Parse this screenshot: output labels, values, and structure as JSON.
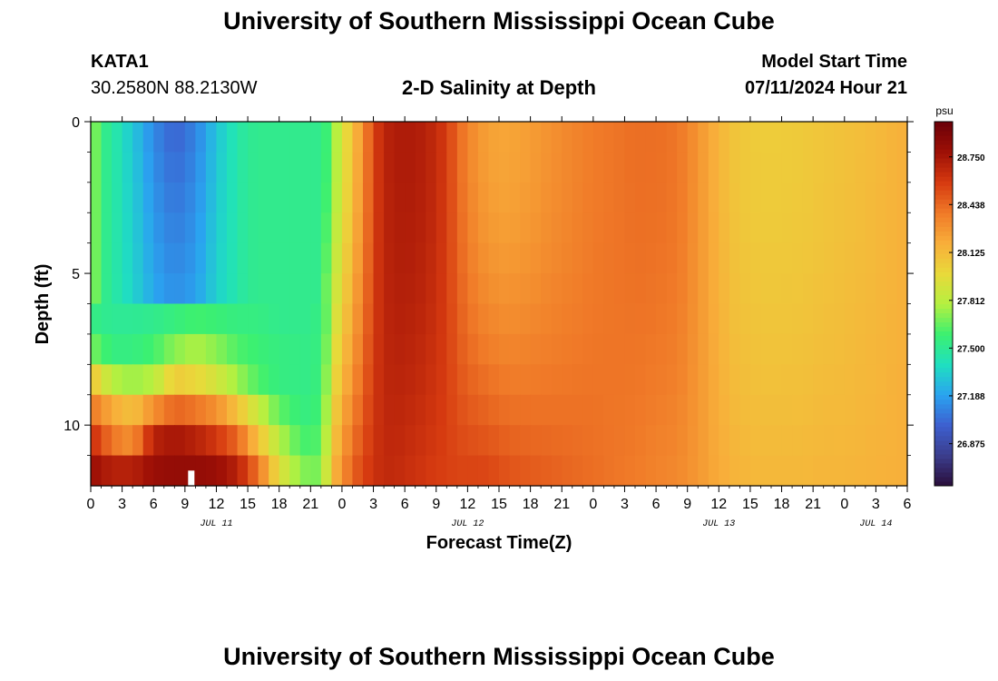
{
  "header": {
    "title": "University of Southern Mississippi Ocean Cube",
    "station_id": "KATA1",
    "coordinates": "30.2580N  88.2130W",
    "subtitle": "2-D Salinity at Depth",
    "model_start_label": "Model Start Time",
    "model_start_value": "07/11/2024 Hour 21"
  },
  "footer": {
    "title": "University of Southern Mississippi Ocean Cube"
  },
  "colors": {
    "scale": [
      "#2a0d3a",
      "#3b3d8c",
      "#3d5fcf",
      "#2aa3f0",
      "#1fe0c0",
      "#3cf070",
      "#b5f040",
      "#e9d93a",
      "#f8ae3a",
      "#f07a28",
      "#d63a10",
      "#9e1006",
      "#6b0008"
    ]
  },
  "chart_data": {
    "type": "heatmap",
    "title": "2-D Salinity at Depth",
    "xlabel": "Forecast Time(Z)",
    "ylabel": "Depth (ft)",
    "x_unit": "hours since 2024-07-11 00Z",
    "xlim": [
      0,
      78
    ],
    "ylim": [
      0,
      12
    ],
    "x_ticks": [
      0,
      3,
      6,
      9,
      12,
      15,
      18,
      21,
      24,
      27,
      30,
      33,
      36,
      39,
      42,
      45,
      48,
      51,
      54,
      57,
      60,
      63,
      66,
      69,
      72,
      75,
      78
    ],
    "x_tick_labels": [
      "0",
      "3",
      "6",
      "9",
      "12",
      "15",
      "18",
      "21",
      "0",
      "3",
      "6",
      "9",
      "12",
      "15",
      "18",
      "21",
      "0",
      "3",
      "6",
      "9",
      "12",
      "15",
      "18",
      "21",
      "0",
      "3",
      "6"
    ],
    "y_ticks": [
      0,
      5,
      10
    ],
    "y_tick_labels": [
      "0",
      "5",
      "10"
    ],
    "date_labels": [
      {
        "text": "JUL 11",
        "x": 12
      },
      {
        "text": "JUL 12",
        "x": 36
      },
      {
        "text": "JUL 13",
        "x": 60
      },
      {
        "text": "JUL 14",
        "x": 75
      }
    ],
    "colorbar": {
      "unit": "psu",
      "range": [
        26.6,
        28.98
      ],
      "ticks": [
        26.875,
        27.188,
        27.5,
        27.812,
        28.125,
        28.438,
        28.75
      ],
      "tick_labels": [
        "26.875",
        "27.188",
        "27.500",
        "27.812",
        "28.125",
        "28.438",
        "28.750"
      ]
    },
    "depth_levels": [
      0.5,
      1.5,
      2.5,
      3.5,
      4.5,
      5.5,
      6.5,
      7.5,
      8.5,
      9.5,
      10.5,
      11.5
    ],
    "time_series_profile": {
      "hours": [
        0,
        1,
        3,
        5,
        6,
        8,
        10,
        12,
        14,
        15,
        16,
        17,
        18,
        19,
        20,
        21,
        22,
        22.5,
        23,
        24,
        25,
        26,
        27,
        28,
        29,
        30,
        31,
        32,
        33,
        34,
        35,
        36,
        37,
        38,
        39,
        40,
        42,
        44,
        46,
        48,
        50,
        52,
        54,
        56,
        57,
        58,
        59,
        60,
        61,
        62,
        64,
        66,
        68,
        70,
        72,
        74,
        76,
        78
      ],
      "surface_psu": [
        27.8,
        27.55,
        27.42,
        27.3,
        27.22,
        27.16,
        27.2,
        27.35,
        27.45,
        27.5,
        27.52,
        27.52,
        27.52,
        27.52,
        27.52,
        27.52,
        27.52,
        27.58,
        27.7,
        27.9,
        28.1,
        28.3,
        28.55,
        28.68,
        28.72,
        28.73,
        28.72,
        28.7,
        28.65,
        28.58,
        28.45,
        28.35,
        28.28,
        28.24,
        28.22,
        28.22,
        28.25,
        28.3,
        28.34,
        28.38,
        28.4,
        28.42,
        28.42,
        28.4,
        28.35,
        28.28,
        28.22,
        28.16,
        28.1,
        28.07,
        28.05,
        28.05,
        28.06,
        28.08,
        28.1,
        28.12,
        28.15,
        28.18
      ],
      "bottom_psu": [
        28.9,
        28.85,
        28.85,
        28.9,
        28.92,
        28.95,
        28.95,
        28.9,
        28.78,
        28.65,
        28.4,
        28.1,
        27.9,
        27.8,
        27.72,
        27.7,
        27.8,
        27.95,
        28.1,
        28.3,
        28.45,
        28.55,
        28.62,
        28.66,
        28.66,
        28.64,
        28.62,
        28.6,
        28.58,
        28.57,
        28.55,
        28.55,
        28.55,
        28.54,
        28.52,
        28.5,
        28.48,
        28.46,
        28.44,
        28.42,
        28.4,
        28.38,
        28.35,
        28.33,
        28.3,
        28.27,
        28.23,
        28.2,
        28.17,
        28.15,
        28.14,
        28.14,
        28.14,
        28.15,
        28.15,
        28.16,
        28.17,
        28.18
      ]
    },
    "layered_early_period": {
      "hours": [
        0,
        2,
        4,
        6,
        8,
        10,
        12,
        14,
        16,
        18,
        20,
        22
      ],
      "rows": {
        "6": [
          27.55,
          27.5,
          27.5,
          27.52,
          27.56,
          27.6,
          27.58,
          27.55,
          27.55,
          27.52,
          27.52,
          27.52
        ],
        "7": [
          27.7,
          27.55,
          27.55,
          27.6,
          27.72,
          27.78,
          27.72,
          27.62,
          27.58,
          27.55,
          27.54,
          27.52
        ],
        "8": [
          28.1,
          27.8,
          27.75,
          27.8,
          28.05,
          28.0,
          27.9,
          27.75,
          27.62,
          27.55,
          27.54,
          27.52
        ],
        "9": [
          28.4,
          28.2,
          28.1,
          28.3,
          28.45,
          28.4,
          28.3,
          28.1,
          27.85,
          27.65,
          27.56,
          27.54
        ],
        "10": [
          28.65,
          28.4,
          28.3,
          28.7,
          28.75,
          28.7,
          28.6,
          28.45,
          28.1,
          27.8,
          27.62,
          27.58
        ],
        "11": [
          28.8,
          28.7,
          28.7,
          28.8,
          28.82,
          28.82,
          28.8,
          28.7,
          28.4,
          27.95,
          27.72,
          27.66
        ]
      }
    }
  }
}
